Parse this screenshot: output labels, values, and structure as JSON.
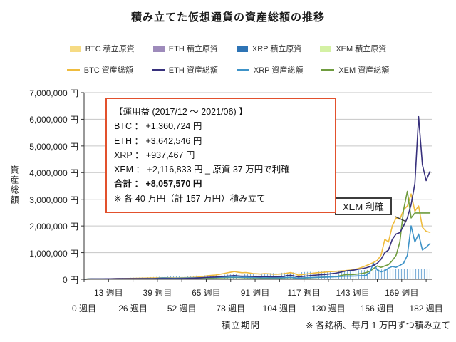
{
  "title": "積み立てた仮想通貨の資産総額の推移",
  "legend": {
    "row1": [
      {
        "label": "BTC 積立原資",
        "color": "#F6DB84"
      },
      {
        "label": "ETH 積立原資",
        "color": "#9E8BBB"
      },
      {
        "label": "XRP 積立原資",
        "color": "#2E74B5"
      },
      {
        "label": "XEM 積立原資",
        "color": "#D4F1A4"
      }
    ],
    "row2": [
      {
        "label": "BTC 資産総額",
        "color": "#EFBC3E"
      },
      {
        "label": "ETH 資産総額",
        "color": "#37307C"
      },
      {
        "label": "XRP 資産総額",
        "color": "#3E93C8"
      },
      {
        "label": "XEM 資産総額",
        "color": "#6F9C3F"
      }
    ]
  },
  "y_axis": {
    "title": "資産総額",
    "ticks": [
      "7,000,000 円",
      "6,000,000 円",
      "5,000,000 円",
      "4,000,000 円",
      "3,000,000 円",
      "2,000,000 円",
      "1,000,000 円",
      "0 円"
    ],
    "tick_values": [
      7000000,
      6000000,
      5000000,
      4000000,
      3000000,
      2000000,
      1000000,
      0
    ]
  },
  "x_axis": {
    "title": "積立期間",
    "ticks_row1": [
      "13 週目",
      "39 週目",
      "65 週目",
      "91 週目",
      "117 週目",
      "143 週目",
      "169 週目"
    ],
    "tick_weeks_row1": [
      13,
      39,
      65,
      91,
      117,
      143,
      169
    ],
    "ticks_row2": [
      "0 週目",
      "26 週目",
      "52 週目",
      "78 週目",
      "104 週目",
      "130 週目",
      "156 週目",
      "182 週目"
    ],
    "tick_weeks_row2": [
      0,
      26,
      52,
      78,
      104,
      130,
      156,
      182
    ]
  },
  "footnote": "※ 各銘柄、毎月 1 万円ずつ積み立て",
  "annotation": {
    "title_line": "【運用益 (2017/12 ～ 2021/06) 】",
    "rows": [
      "BTC ： +1,360,724 円",
      "ETH ： +3,642,546 円",
      "XRP ： +937,467 円",
      "XEM ： +2,116,833 円 _ 原資 37 万円で利確"
    ],
    "total": "合計 ： +8,057,570 円",
    "note": "※ 各 40 万円（計 157 万円）積み立て"
  },
  "callout": "XEM 利確",
  "chart_data": {
    "type": "line",
    "title": "積み立てた仮想通貨の資産総額の推移",
    "xlabel": "積立期間",
    "ylabel": "資産総額",
    "x_unit": "週目",
    "xlim": [
      0,
      185
    ],
    "ylim": [
      0,
      7000000
    ],
    "grid": "horizontal",
    "weeks": [
      0,
      2,
      4,
      6,
      8,
      10,
      12,
      14,
      16,
      18,
      20,
      22,
      24,
      26,
      28,
      30,
      32,
      34,
      36,
      38,
      40,
      42,
      44,
      46,
      48,
      50,
      52,
      54,
      56,
      58,
      60,
      62,
      64,
      66,
      68,
      70,
      72,
      74,
      76,
      78,
      80,
      82,
      84,
      86,
      88,
      90,
      92,
      94,
      96,
      98,
      100,
      102,
      104,
      106,
      108,
      110,
      112,
      114,
      116,
      118,
      120,
      122,
      124,
      126,
      128,
      130,
      132,
      134,
      136,
      138,
      140,
      142,
      144,
      146,
      148,
      150,
      152,
      154,
      156,
      158,
      160,
      162,
      164,
      166,
      168,
      170,
      172,
      174,
      176,
      178,
      180,
      182,
      184
    ],
    "principal": {
      "name": "積立原資",
      "hatch_color": "#7FB0D8",
      "values": [
        0,
        4624,
        9248,
        13872,
        18496,
        23120,
        27744,
        32368,
        36992,
        41616,
        46240,
        50864,
        55488,
        60112,
        64736,
        69360,
        73984,
        78608,
        83232,
        87856,
        92480,
        97104,
        101728,
        106352,
        110976,
        115600,
        120224,
        124848,
        129472,
        134096,
        138720,
        143344,
        147968,
        152592,
        157216,
        161840,
        166464,
        171088,
        175712,
        180336,
        184960,
        189584,
        194208,
        198832,
        203456,
        208080,
        212704,
        217328,
        221952,
        226576,
        231200,
        235824,
        240448,
        245072,
        249696,
        254320,
        258944,
        263568,
        268192,
        272816,
        277440,
        282064,
        286688,
        291312,
        295936,
        300560,
        305184,
        309808,
        314432,
        319056,
        323680,
        328304,
        332928,
        337552,
        342176,
        346800,
        351424,
        356048,
        360672,
        365296,
        369920,
        374544,
        379168,
        383792,
        388416,
        393040,
        397664,
        400000,
        400000,
        400000,
        400000,
        400000,
        400000
      ]
    },
    "series": [
      {
        "name": "BTC 資産総額",
        "color": "#EFBC3E",
        "values": [
          0,
          5000,
          9000,
          11000,
          12000,
          13000,
          15000,
          18000,
          21000,
          24000,
          27000,
          30000,
          33000,
          36000,
          39000,
          42000,
          45000,
          48000,
          51000,
          54000,
          56000,
          58000,
          60000,
          55000,
          50000,
          54000,
          58000,
          62000,
          66000,
          72000,
          80000,
          95000,
          115000,
          135000,
          150000,
          160000,
          185000,
          210000,
          240000,
          265000,
          290000,
          265000,
          245000,
          255000,
          235000,
          215000,
          205000,
          195000,
          215000,
          205000,
          195000,
          190000,
          195000,
          205000,
          230000,
          250000,
          215000,
          155000,
          175000,
          195000,
          215000,
          230000,
          245000,
          255000,
          265000,
          280000,
          290000,
          300000,
          310000,
          320000,
          335000,
          345000,
          365000,
          405000,
          455000,
          510000,
          570000,
          630000,
          710000,
          900000,
          1500000,
          1400000,
          2000000,
          2300000,
          2250000,
          2600000,
          2750000,
          3200000,
          2550000,
          2750000,
          1950000,
          1800000,
          1760724
        ]
      },
      {
        "name": "XEM 資産総額",
        "color": "#6F9C3F",
        "values": [
          0,
          12000,
          20000,
          14000,
          12000,
          11000,
          12000,
          12000,
          13000,
          13000,
          14000,
          14000,
          15000,
          15000,
          16000,
          16000,
          17000,
          17000,
          18000,
          18000,
          19000,
          19000,
          20000,
          18000,
          17000,
          18000,
          19000,
          22000,
          26000,
          30000,
          34000,
          38000,
          42000,
          46000,
          48000,
          50000,
          54000,
          58000,
          62000,
          66000,
          70000,
          66000,
          62000,
          60000,
          56000,
          52000,
          50000,
          48000,
          50000,
          48000,
          46000,
          44000,
          46000,
          50000,
          58000,
          64000,
          50000,
          38000,
          44000,
          50000,
          56000,
          62000,
          68000,
          74000,
          80000,
          88000,
          95000,
          105000,
          130000,
          160000,
          180000,
          175000,
          185000,
          200000,
          220000,
          250000,
          300000,
          400000,
          500000,
          450000,
          500000,
          550000,
          700000,
          900000,
          1400000,
          2600000,
          3300000,
          2300000,
          2486833,
          2486833,
          2486833,
          2486833,
          2486833
        ]
      },
      {
        "name": "XRP 資産総額",
        "color": "#3E93C8",
        "values": [
          0,
          8000,
          14000,
          11000,
          10000,
          11000,
          12000,
          13000,
          14000,
          15000,
          16000,
          17000,
          18000,
          19000,
          20000,
          21000,
          22000,
          23000,
          24000,
          26000,
          45000,
          50000,
          48000,
          42000,
          40000,
          42000,
          45000,
          47000,
          50000,
          52000,
          55000,
          58000,
          62000,
          66000,
          68000,
          70000,
          74000,
          78000,
          80000,
          82000,
          84000,
          80000,
          76000,
          74000,
          70000,
          66000,
          64000,
          62000,
          64000,
          62000,
          60000,
          58000,
          60000,
          62000,
          70000,
          75000,
          60000,
          45000,
          52000,
          58000,
          64000,
          70000,
          74000,
          78000,
          82000,
          86000,
          90000,
          95000,
          105000,
          115000,
          120000,
          118000,
          122000,
          128000,
          135000,
          145000,
          250000,
          600000,
          350000,
          280000,
          320000,
          420000,
          480000,
          450000,
          520000,
          600000,
          900000,
          2000000,
          1400000,
          1700000,
          1100000,
          1200000,
          1337467
        ]
      },
      {
        "name": "ETH 資産総額",
        "color": "#37307C",
        "values": [
          0,
          9000,
          17000,
          16000,
          15000,
          16000,
          18000,
          20000,
          22000,
          24000,
          26000,
          28000,
          27000,
          26000,
          25000,
          24000,
          23000,
          23000,
          22000,
          23000,
          24000,
          25000,
          26000,
          23000,
          21000,
          24000,
          27000,
          30000,
          34000,
          40000,
          48000,
          56000,
          66000,
          76000,
          82000,
          86000,
          96000,
          106000,
          118000,
          128000,
          138000,
          126000,
          116000,
          120000,
          112000,
          104000,
          100000,
          96000,
          104000,
          100000,
          96000,
          94000,
          98000,
          104000,
          140000,
          150000,
          120000,
          90000,
          105000,
          120000,
          135000,
          150000,
          160000,
          170000,
          180000,
          195000,
          210000,
          230000,
          260000,
          290000,
          320000,
          330000,
          350000,
          380000,
          400000,
          430000,
          470000,
          520000,
          600000,
          750000,
          1000000,
          1100000,
          1500000,
          1700000,
          1750000,
          2000000,
          2300000,
          2800000,
          3600000,
          6100000,
          4300000,
          3700000,
          4042546
        ]
      }
    ]
  }
}
